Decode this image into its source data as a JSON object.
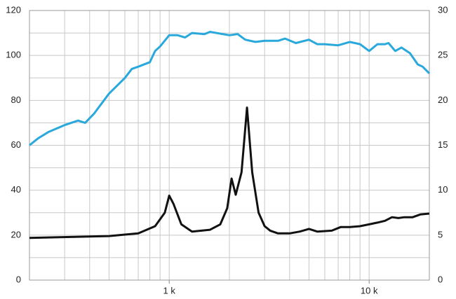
{
  "chart_data": {
    "type": "line",
    "xlog": true,
    "xlim": [
      200,
      20000
    ],
    "xticks": [
      {
        "value": 1000,
        "label": "1 k"
      },
      {
        "value": 10000,
        "label": "10 k"
      }
    ],
    "xgrid": [
      200,
      300,
      400,
      500,
      600,
      700,
      800,
      900,
      1000,
      2000,
      3000,
      4000,
      5000,
      6000,
      7000,
      8000,
      9000,
      10000,
      20000
    ],
    "ylim": [
      0,
      120
    ],
    "yticks": [
      0,
      20,
      40,
      60,
      80,
      100,
      120
    ],
    "ygrid": [
      0,
      10,
      20,
      30,
      40,
      50,
      60,
      70,
      80,
      90,
      100,
      110,
      120
    ],
    "y2lim": [
      0,
      30
    ],
    "y2ticks": [
      0,
      5,
      10,
      15,
      20,
      25,
      30
    ],
    "grid": true,
    "series": [
      {
        "color": "#29a8dc",
        "axis": "y",
        "x": [
          200,
          220,
          250,
          300,
          350,
          380,
          420,
          500,
          600,
          650,
          700,
          800,
          850,
          900,
          1000,
          1100,
          1200,
          1300,
          1500,
          1600,
          2000,
          2200,
          2400,
          2700,
          3000,
          3500,
          3800,
          4300,
          5000,
          5500,
          6000,
          7000,
          8000,
          9000,
          10000,
          11000,
          12000,
          12500,
          13500,
          14500,
          16000,
          17500,
          18500,
          20000
        ],
        "values": [
          60,
          63,
          66,
          69,
          71,
          70,
          74,
          83,
          90,
          94,
          95,
          97,
          102,
          104,
          109,
          109,
          108,
          110,
          109.5,
          110.5,
          109,
          109.5,
          107,
          106,
          106.5,
          106.5,
          107.5,
          105.5,
          107,
          105,
          105,
          104.5,
          106,
          105,
          102,
          105,
          105,
          105.5,
          102,
          103.5,
          101,
          96,
          95,
          92
        ]
      },
      {
        "color": "#111111",
        "axis": "y2",
        "x": [
          200,
          500,
          700,
          850,
          950,
          1000,
          1050,
          1150,
          1300,
          1600,
          1800,
          1950,
          2050,
          2150,
          2300,
          2450,
          2600,
          2800,
          3000,
          3200,
          3500,
          4000,
          4500,
          5000,
          5500,
          6500,
          7200,
          8000,
          9000,
          10000,
          11000,
          12000,
          13000,
          14000,
          15000,
          16500,
          18000,
          20000
        ],
        "values": [
          4.7,
          4.9,
          5.2,
          6,
          7.5,
          9.4,
          8.5,
          6.2,
          5.4,
          5.6,
          6.2,
          8,
          11.3,
          9.5,
          12,
          19.2,
          12,
          7.5,
          6,
          5.5,
          5.2,
          5.2,
          5.4,
          5.7,
          5.4,
          5.5,
          5.9,
          5.9,
          6,
          6.2,
          6.4,
          6.6,
          7,
          6.9,
          7,
          7,
          7.3,
          7.4
        ]
      }
    ]
  }
}
